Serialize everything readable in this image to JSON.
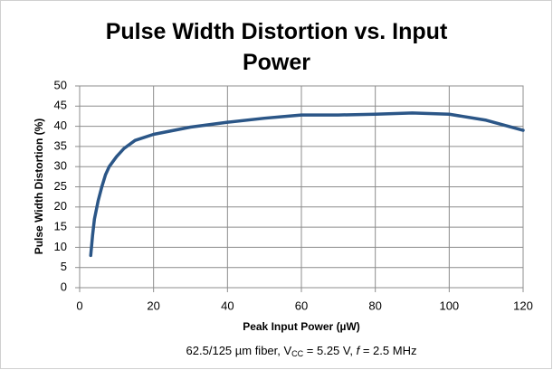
{
  "chart_data": {
    "type": "line",
    "title": "Pulse Width Distortion vs. Input Power",
    "x_label": "Peak Input Power (µW)",
    "y_label": "Pulse Width Distortion (%)",
    "caption": [
      "62.5/125 µm fiber, V",
      "CC",
      " = 5.25 V, ",
      "f",
      " = 2.5 MHz"
    ],
    "x": [
      3,
      3.5,
      4,
      5,
      6,
      7,
      8,
      10,
      12,
      15,
      20,
      30,
      40,
      50,
      60,
      70,
      80,
      90,
      100,
      110,
      120
    ],
    "values": [
      8,
      13,
      17,
      21.5,
      25,
      28,
      30,
      32.5,
      34.5,
      36.5,
      38,
      39.8,
      41,
      42,
      42.8,
      42.8,
      43,
      43.3,
      43,
      41.5,
      39
    ],
    "color": "#2b5687",
    "xlim": [
      0,
      120
    ],
    "xticks": [
      0,
      20,
      40,
      60,
      80,
      100,
      120
    ],
    "ylim": [
      0,
      50
    ],
    "yticks": [
      0,
      5,
      10,
      15,
      20,
      25,
      30,
      35,
      40,
      45,
      50
    ],
    "grid": true
  }
}
